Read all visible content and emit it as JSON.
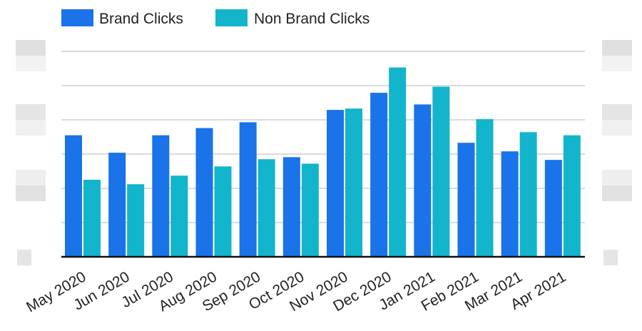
{
  "chart_data": {
    "type": "bar",
    "categories": [
      "May 2020",
      "Jun 2020",
      "Jul 2020",
      "Aug 2020",
      "Sep 2020",
      "Oct 2020",
      "Nov 2020",
      "Dec 2020",
      "Jan 2021",
      "Feb 2021",
      "Mar 2021",
      "Apr 2021"
    ],
    "series": [
      {
        "name": "Brand Clicks",
        "color": "#1a73e8",
        "values": [
          3.55,
          3.04,
          3.55,
          3.76,
          3.93,
          2.91,
          4.29,
          4.79,
          4.45,
          3.33,
          3.08,
          2.83
        ]
      },
      {
        "name": "Non Brand Clicks",
        "color": "#12b5cb",
        "values": [
          2.25,
          2.12,
          2.37,
          2.64,
          2.85,
          2.72,
          4.33,
          5.53,
          4.97,
          4.02,
          3.64,
          3.55
        ]
      }
    ],
    "title": "",
    "xlabel": "",
    "ylabel": "",
    "ylim": [
      0,
      6
    ],
    "grid": true,
    "legend_position": "top-left",
    "y_tick_labels": "obscured"
  }
}
